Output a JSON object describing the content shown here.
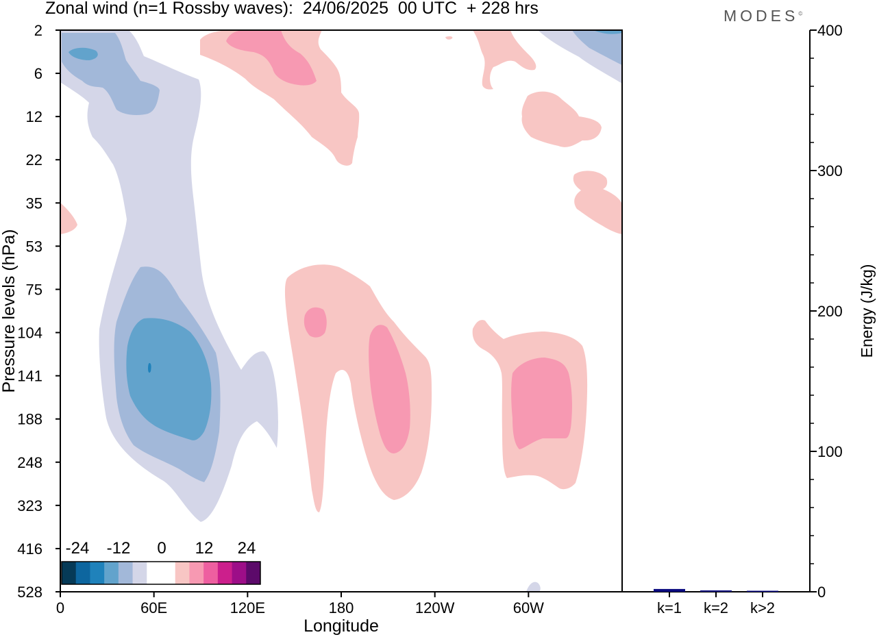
{
  "title": "Zonal wind (n=1 Rossby waves):  24/06/2025  00 UTC  + 228 hrs",
  "brand": "MODES",
  "brand_mark": "©",
  "colors": {
    "neg4": "#1f82bb",
    "neg3": "#62a3cc",
    "neg2": "#a2b8d9",
    "neg1": "#d4d6e8",
    "pos1": "#f8c6c4",
    "pos2": "#f799b2",
    "pos3": "#ee5fa0",
    "pos4": "#cc1f8c",
    "bar": "#0a0a80"
  },
  "colorbar": {
    "labels": [
      "-24",
      "-12",
      "0",
      "12",
      "24"
    ],
    "colors": [
      "#063a57",
      "#0d669f",
      "#1f82bb",
      "#62a3cc",
      "#a2b8d9",
      "#d4d6e8",
      "#ffffff",
      "#ffffff",
      "#f8c6c4",
      "#f799b2",
      "#ee5fa0",
      "#cc1f8c",
      "#9d0e88",
      "#5c0a6a"
    ]
  },
  "chart_data": [
    {
      "type": "heatmap",
      "title": "Zonal wind (n=1 Rossby waves):  24/06/2025  00 UTC  + 228 hrs",
      "xlabel": "Longitude",
      "ylabel": "Pressure levels (hPa)",
      "x_ticks": [
        "0",
        "60E",
        "120E",
        "180",
        "120W",
        "60W"
      ],
      "y_ticks": [
        "2",
        "6",
        "12",
        "22",
        "35",
        "53",
        "75",
        "104",
        "141",
        "188",
        "248",
        "323",
        "416",
        "528"
      ],
      "legend_levels": [
        -24,
        -12,
        0,
        12,
        24
      ],
      "features": [
        {
          "sign": "negative",
          "center_lon": 57,
          "center_hPa": 141,
          "peak_level": -20
        },
        {
          "sign": "negative",
          "center_lon": 15,
          "center_hPa": 5,
          "peak_level": -16
        },
        {
          "sign": "positive",
          "center_lon": 165,
          "center_hPa": 104,
          "peak_level": 8
        },
        {
          "sign": "positive",
          "center_lon": 205,
          "center_hPa": 160,
          "peak_level": 8
        },
        {
          "sign": "positive",
          "center_lon": 295,
          "center_hPa": 170,
          "peak_level": 8
        },
        {
          "sign": "positive",
          "center_lon": 145,
          "center_hPa": 5,
          "peak_level": 8
        }
      ]
    },
    {
      "type": "bar",
      "ylabel": "Energy (J/kg)",
      "ylim": [
        0,
        400
      ],
      "y_ticks": [
        "0",
        "100",
        "200",
        "300",
        "400"
      ],
      "categories": [
        "k=1",
        "k=2",
        "k>2"
      ],
      "values": [
        2,
        1,
        0.5
      ]
    }
  ]
}
